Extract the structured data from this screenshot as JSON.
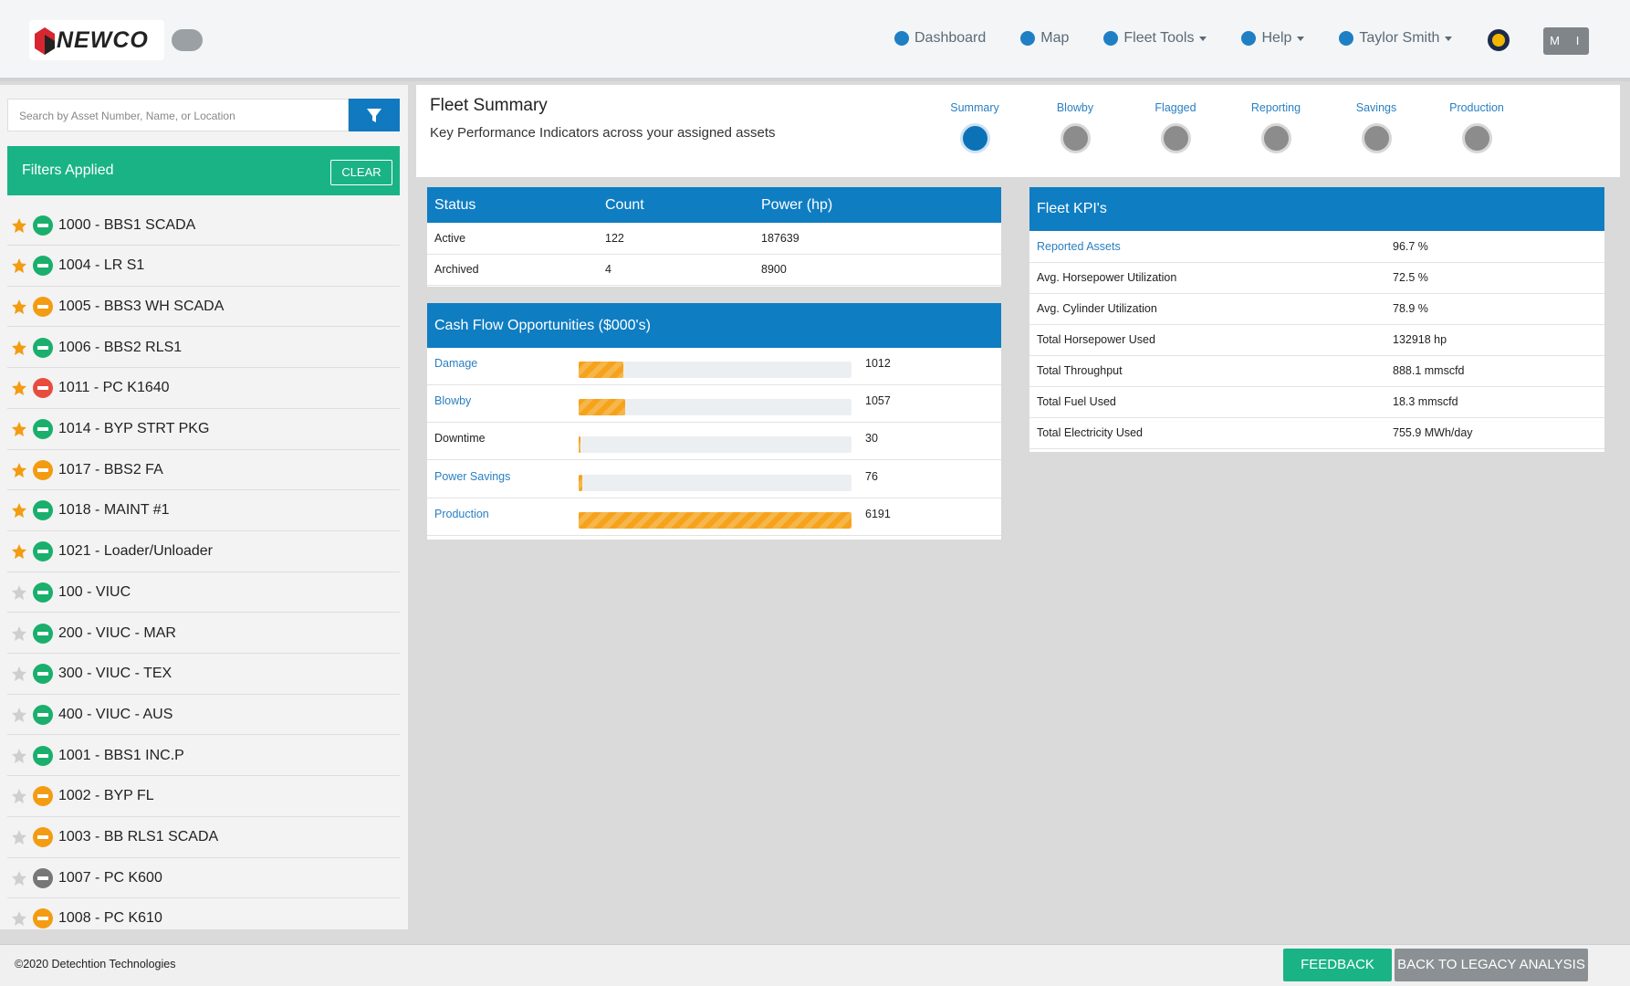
{
  "header": {
    "brand": "NEWCO",
    "nav": [
      "Dashboard",
      "Map",
      "Fleet Tools",
      "Help",
      "Taylor Smith"
    ],
    "toggle": [
      "M",
      "I"
    ]
  },
  "sidebar": {
    "search_placeholder": "Search by Asset Number, Name, or Location",
    "filters_label": "Filters Applied",
    "clear": "CLEAR",
    "assets": [
      {
        "name": "1000 - BBS1 SCADA",
        "starred": true,
        "status_color": "#1aaf6c"
      },
      {
        "name": "1004 - LR S1",
        "starred": true,
        "status_color": "#1aaf6c"
      },
      {
        "name": "1005 - BBS3 WH SCADA",
        "starred": true,
        "status_color": "#f39c12"
      },
      {
        "name": "1006 - BBS2 RLS1",
        "starred": true,
        "status_color": "#1aaf6c"
      },
      {
        "name": "1011 - PC K1640",
        "starred": true,
        "status_color": "#e74c3c"
      },
      {
        "name": "1014 - BYP STRT PKG",
        "starred": true,
        "status_color": "#1aaf6c"
      },
      {
        "name": "1017 - BBS2 FA",
        "starred": true,
        "status_color": "#f39c12"
      },
      {
        "name": "1018 - MAINT #1",
        "starred": true,
        "status_color": "#1aaf6c"
      },
      {
        "name": "1021 - Loader/Unloader",
        "starred": true,
        "status_color": "#1aaf6c"
      },
      {
        "name": "100 - VIUC",
        "starred": false,
        "status_color": "#1aaf6c"
      },
      {
        "name": "200 - VIUC - MAR",
        "starred": false,
        "status_color": "#1aaf6c"
      },
      {
        "name": "300 - VIUC - TEX",
        "starred": false,
        "status_color": "#1aaf6c"
      },
      {
        "name": "400 - VIUC - AUS",
        "starred": false,
        "status_color": "#1aaf6c"
      },
      {
        "name": "1001 - BBS1 INC.P",
        "starred": false,
        "status_color": "#1aaf6c"
      },
      {
        "name": "1002 - BYP FL",
        "starred": false,
        "status_color": "#f39c12"
      },
      {
        "name": "1003 - BB RLS1 SCADA",
        "starred": false,
        "status_color": "#f39c12"
      },
      {
        "name": "1007 - PC K600",
        "starred": false,
        "status_color": "#777777"
      },
      {
        "name": "1008 - PC K610",
        "starred": false,
        "status_color": "#f39c12"
      }
    ]
  },
  "summary": {
    "title": "Fleet Summary",
    "subtitle": "Key Performance Indicators across your assigned assets",
    "tabs": [
      "Summary",
      "Blowby",
      "Flagged",
      "Reporting",
      "Savings",
      "Production"
    ]
  },
  "status_table": {
    "headers": [
      "Status",
      "Count",
      "Power (hp)"
    ],
    "rows": [
      [
        "Active",
        122,
        187639
      ],
      [
        "Archived",
        4,
        8900
      ]
    ]
  },
  "cash_flow": {
    "title": "Cash Flow Opportunities ($000's)",
    "items": [
      {
        "label": "Damage",
        "value": 1012,
        "link": true
      },
      {
        "label": "Blowby",
        "value": 1057,
        "link": true
      },
      {
        "label": "Downtime",
        "value": 30,
        "link": false
      },
      {
        "label": "Power Savings",
        "value": 76,
        "link": true
      },
      {
        "label": "Production",
        "value": 6191,
        "link": true
      }
    ]
  },
  "kpis": {
    "title": "Fleet KPI's",
    "rows": [
      [
        "Reported Assets",
        "96.7 %"
      ],
      [
        "Avg. Horsepower Utilization",
        "72.5 %"
      ],
      [
        "Avg. Cylinder Utilization",
        "78.9 %"
      ],
      [
        "Total Horsepower Used",
        "132918 hp"
      ],
      [
        "Total Throughput",
        "888.1 mmscfd"
      ],
      [
        "Total Fuel Used",
        "18.3 mmscfd"
      ],
      [
        "Total Electricity Used",
        "755.9 MWh/day"
      ]
    ]
  },
  "footer": {
    "copyright": "©2020 Detechtion Technologies",
    "feedback": "FEEDBACK",
    "legacy": "BACK TO LEGACY ANALYSIS"
  }
}
